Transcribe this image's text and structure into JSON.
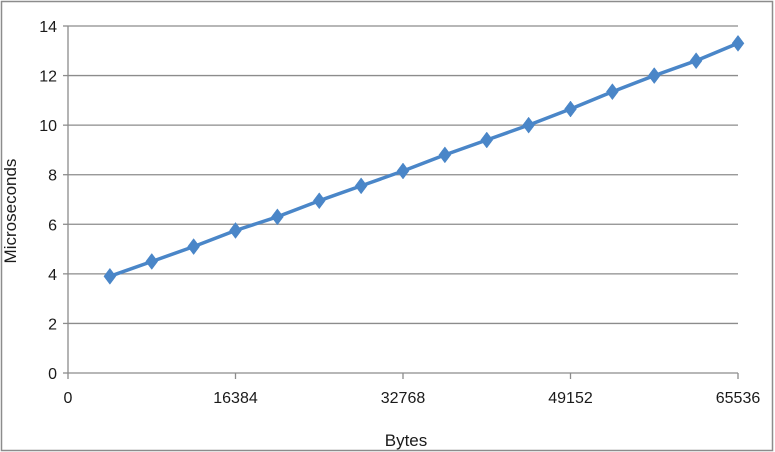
{
  "chart_data": {
    "type": "line",
    "title": "",
    "xlabel": "Bytes",
    "ylabel": "Microseconds",
    "xlim": [
      0,
      65536
    ],
    "ylim": [
      0,
      14
    ],
    "x_ticks": [
      0,
      16384,
      32768,
      49152,
      65536
    ],
    "x_tick_labels": [
      "0",
      "16384",
      "32768",
      "49152",
      "65536"
    ],
    "y_ticks": [
      0,
      2,
      4,
      6,
      8,
      10,
      12,
      14
    ],
    "y_tick_labels": [
      "0",
      "2",
      "4",
      "6",
      "8",
      "10",
      "12",
      "14"
    ],
    "grid": "horizontal",
    "legend": "none",
    "series": [
      {
        "color": "#4a86c8",
        "marker": "diamond",
        "x": [
          4096,
          8192,
          12288,
          16384,
          20480,
          24576,
          28672,
          32768,
          36864,
          40960,
          45056,
          49152,
          53248,
          57344,
          61440,
          65536
        ],
        "y": [
          3.9,
          4.5,
          5.1,
          5.75,
          6.3,
          6.95,
          7.55,
          8.15,
          8.8,
          9.4,
          10.0,
          10.65,
          11.35,
          12.0,
          12.6,
          13.3
        ]
      }
    ]
  }
}
